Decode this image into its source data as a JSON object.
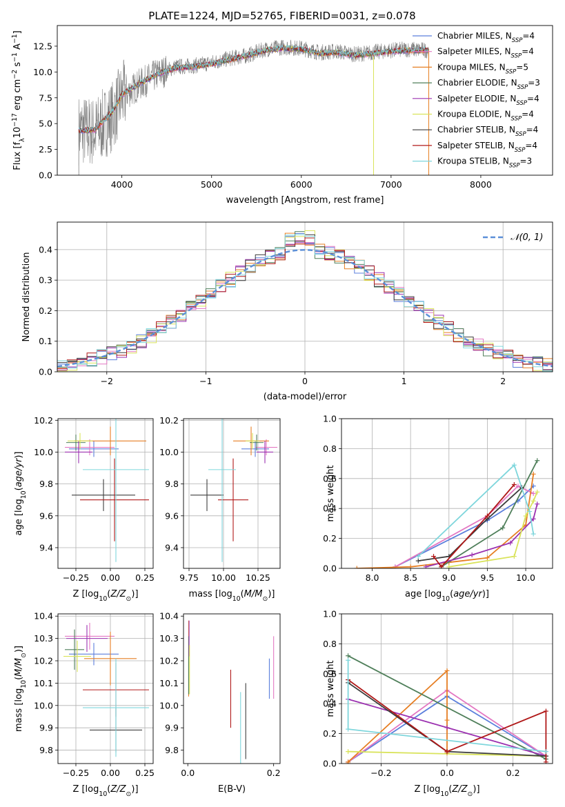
{
  "figure_title": "PLATE=1224, MJD=52765, FIBERID=0031, z=0.078",
  "chart_data": [
    {
      "id": "spectrum",
      "type": "line",
      "title": "PLATE=1224, MJD=52765, FIBERID=0031, z=0.078",
      "xlabel": "wavelength [Angstrom, rest frame]",
      "ylabel": "Flux [f_λ 10^-17 erg cm^-2 s^-1 A^-1]",
      "xlim": [
        3280,
        8800
      ],
      "ylim": [
        0,
        14.5
      ],
      "xticks": [
        4000,
        5000,
        6000,
        7000,
        8000
      ],
      "yticks": [
        0.0,
        2.5,
        5.0,
        7.5,
        10.0,
        12.5
      ],
      "grid": false,
      "legend_position": "right",
      "data_series": {
        "name": "data",
        "color": "#808080",
        "x": [
          3520,
          3700,
          3900,
          4000,
          4200,
          4400,
          4600,
          4800,
          5000,
          5200,
          5400,
          5600,
          5800,
          6000,
          6200,
          6400,
          6600,
          6800,
          7000,
          7200,
          7420
        ],
        "y": [
          4.4,
          4.2,
          5.8,
          7.6,
          8.8,
          9.8,
          10.5,
          10.6,
          10.9,
          11.3,
          11.6,
          12.2,
          12.4,
          12.3,
          11.9,
          12.0,
          11.7,
          11.9,
          12.1,
          12.2,
          12.1
        ]
      },
      "model_curve": {
        "x": [
          3520,
          3700,
          3900,
          4000,
          4200,
          4400,
          4600,
          4800,
          5000,
          5200,
          5400,
          5600,
          5800,
          6000,
          6200,
          6400,
          6600,
          6800,
          7000,
          7200,
          7420
        ],
        "y": [
          4.3,
          4.4,
          6.2,
          7.8,
          8.9,
          9.8,
          10.4,
          10.5,
          10.8,
          11.2,
          11.6,
          12.1,
          12.3,
          12.2,
          11.8,
          11.9,
          11.6,
          11.8,
          12.0,
          12.1,
          12.1
        ]
      },
      "series": [
        {
          "name": "Chabrier MILES, N_SSP=4",
          "label_main": "Chabrier MILES, N",
          "label_sub": "SSP",
          "label_tail": "=4",
          "color": "#5b7fdc"
        },
        {
          "name": "Salpeter MILES, N_SSP=4",
          "label_main": "Salpeter MILES, N",
          "label_sub": "SSP",
          "label_tail": "=4",
          "color": "#e377c2"
        },
        {
          "name": "Kroupa MILES, N_SSP=5",
          "label_main": "Kroupa MILES, N",
          "label_sub": "SSP",
          "label_tail": "=5",
          "color": "#e67e22"
        },
        {
          "name": "Chabrier ELODIE, N_SSP=3",
          "label_main": "Chabrier ELODIE, N",
          "label_sub": "SSP",
          "label_tail": "=3",
          "color": "#4f7f5a"
        },
        {
          "name": "Salpeter ELODIE, N_SSP=4",
          "label_main": "Salpeter ELODIE, N",
          "label_sub": "SSP",
          "label_tail": "=4",
          "color": "#9b30b0"
        },
        {
          "name": "Kroupa ELODIE, N_SSP=4",
          "label_main": "Kroupa ELODIE, N",
          "label_sub": "SSP",
          "label_tail": "=4",
          "color": "#d9e35a"
        },
        {
          "name": "Chabrier STELIB, N_SSP=4",
          "label_main": "Chabrier STELIB, N",
          "label_sub": "SSP",
          "label_tail": "=4",
          "color": "#3c3c3c"
        },
        {
          "name": "Salpeter STELIB, N_SSP=4",
          "label_main": "Salpeter STELIB, N",
          "label_sub": "SSP",
          "label_tail": "=4",
          "color": "#b01818"
        },
        {
          "name": "Kroupa STELIB, N_SSP=3",
          "label_main": "Kroupa STELIB, N",
          "label_sub": "SSP",
          "label_tail": "=3",
          "color": "#7ed6dc"
        }
      ]
    },
    {
      "id": "residuals",
      "type": "histogram",
      "xlabel": "(data-model)/error",
      "ylabel": "Normed distribution",
      "xlim": [
        -2.5,
        2.5
      ],
      "ylim": [
        0,
        0.49
      ],
      "xticks": [
        -2,
        -1,
        0,
        1,
        2
      ],
      "yticks": [
        0.0,
        0.1,
        0.2,
        0.3,
        0.4
      ],
      "grid": true,
      "legend_position": "top-right",
      "legend": "𝒩(0, 1)",
      "gaussian": {
        "mean": 0,
        "sigma": 1,
        "color": "#5b8fd8"
      },
      "bin_width": 0.1
    },
    {
      "id": "age_vs_Z",
      "type": "errorbar",
      "xlabel": "Z [log10(Z/Z☉)]",
      "ylabel": "age [log10(age/yr)]",
      "xlim": [
        -0.38,
        0.31
      ],
      "ylim": [
        9.27,
        10.21
      ],
      "xticks": [
        -0.25,
        0.0,
        0.25
      ],
      "yticks": [
        9.4,
        9.6,
        9.8,
        10.0,
        10.2
      ],
      "grid": true,
      "points": [
        {
          "x": -0.12,
          "xerr": 0.18,
          "y": 10.02,
          "yerr": 0.05
        },
        {
          "x": -0.15,
          "xerr": 0.18,
          "y": 10.03,
          "yerr": 0.05
        },
        {
          "x": 0.0,
          "xerr": 0.26,
          "y": 10.07,
          "yerr": 0.09
        },
        {
          "x": -0.25,
          "xerr": 0.07,
          "y": 10.06,
          "yerr": 0.05
        },
        {
          "x": -0.23,
          "xerr": 0.1,
          "y": 10.0,
          "yerr": 0.07
        },
        {
          "x": -0.22,
          "xerr": 0.09,
          "y": 10.07,
          "yerr": 0.05
        },
        {
          "x": -0.05,
          "xerr": 0.23,
          "y": 9.73,
          "yerr": 0.1
        },
        {
          "x": 0.03,
          "xerr": 0.25,
          "y": 9.7,
          "yerr": 0.26
        },
        {
          "x": 0.04,
          "xerr": 0.24,
          "y": 9.89,
          "yerr": 0.58
        }
      ]
    },
    {
      "id": "age_vs_mass",
      "type": "errorbar",
      "xlabel": "mass [log10(M/M☉)]",
      "ylabel": "",
      "xlim": [
        9.71,
        10.41
      ],
      "ylim": [
        9.27,
        10.21
      ],
      "xticks": [
        9.75,
        10.0,
        10.25
      ],
      "yticks": [
        9.4,
        9.6,
        9.8,
        10.0,
        10.2
      ],
      "grid": true,
      "points": [
        {
          "x": 10.23,
          "xerr": 0.1,
          "y": 10.02,
          "yerr": 0.05
        },
        {
          "x": 10.31,
          "xerr": 0.08,
          "y": 10.03,
          "yerr": 0.05
        },
        {
          "x": 10.2,
          "xerr": 0.13,
          "y": 10.07,
          "yerr": 0.09
        },
        {
          "x": 10.24,
          "xerr": 0.05,
          "y": 10.06,
          "yerr": 0.05
        },
        {
          "x": 10.3,
          "xerr": 0.06,
          "y": 10.0,
          "yerr": 0.07
        },
        {
          "x": 10.21,
          "xerr": 0.05,
          "y": 10.07,
          "yerr": 0.05
        },
        {
          "x": 9.88,
          "xerr": 0.12,
          "y": 9.73,
          "yerr": 0.1
        },
        {
          "x": 10.07,
          "xerr": 0.11,
          "y": 9.7,
          "yerr": 0.26
        },
        {
          "x": 9.99,
          "xerr": 0.1,
          "y": 9.89,
          "yerr": 0.58
        }
      ]
    },
    {
      "id": "massweight_vs_age",
      "type": "line",
      "xlabel": "age [log10(age/yr)]",
      "ylabel": "mass weight",
      "xlim": [
        7.6,
        10.35
      ],
      "ylim": [
        0,
        1.0
      ],
      "xticks": [
        8.0,
        8.5,
        9.0,
        9.5,
        10.0
      ],
      "yticks": [
        0.0,
        0.2,
        0.4,
        0.6,
        0.8,
        1.0
      ],
      "grid": true,
      "series": [
        {
          "x": [
            8.3,
            9.5,
            9.9,
            10.1
          ],
          "y": [
            0.01,
            0.32,
            0.45,
            0.55
          ]
        },
        {
          "x": [
            8.3,
            9.5,
            9.9,
            10.1
          ],
          "y": [
            0.01,
            0.35,
            0.55,
            0.5
          ]
        },
        {
          "x": [
            7.8,
            8.5,
            9.0,
            9.5,
            10.0,
            10.1
          ],
          "y": [
            0.0,
            0.01,
            0.04,
            0.07,
            0.29,
            0.63
          ]
        },
        {
          "x": [
            8.9,
            9.7,
            10.15
          ],
          "y": [
            0.01,
            0.27,
            0.72
          ]
        },
        {
          "x": [
            8.7,
            9.3,
            9.8,
            10.1,
            10.15
          ],
          "y": [
            0.01,
            0.09,
            0.17,
            0.33,
            0.43
          ]
        },
        {
          "x": [
            9.0,
            9.85,
            10.0,
            10.1,
            10.15
          ],
          "y": [
            0.01,
            0.08,
            0.35,
            0.45,
            0.51
          ]
        },
        {
          "x": [
            8.6,
            9.0,
            9.5,
            9.95
          ],
          "y": [
            0.05,
            0.08,
            0.33,
            0.54
          ]
        },
        {
          "x": [
            8.8,
            8.9,
            9.5,
            9.85
          ],
          "y": [
            0.08,
            0.01,
            0.35,
            0.56
          ]
        },
        {
          "x": [
            8.6,
            9.85,
            10.05,
            10.1
          ],
          "y": [
            0.08,
            0.69,
            0.38,
            0.23
          ]
        }
      ]
    },
    {
      "id": "mass_vs_Z",
      "type": "errorbar",
      "xlabel": "Z [log10(Z/Z☉)]",
      "ylabel": "mass [log10(M/M☉)]",
      "xlim": [
        -0.38,
        0.31
      ],
      "ylim": [
        9.74,
        10.41
      ],
      "xticks": [
        -0.25,
        0.0,
        0.25
      ],
      "yticks": [
        9.8,
        9.9,
        10.0,
        10.1,
        10.2,
        10.3,
        10.4
      ],
      "grid": true,
      "points": [
        {
          "x": -0.12,
          "xerr": 0.18,
          "y": 10.23,
          "yerr": 0.05
        },
        {
          "x": -0.15,
          "xerr": 0.18,
          "y": 10.31,
          "yerr": 0.06
        },
        {
          "x": 0.0,
          "xerr": 0.19,
          "y": 10.21,
          "yerr": 0.12
        },
        {
          "x": -0.26,
          "xerr": 0.07,
          "y": 10.25,
          "yerr": 0.09
        },
        {
          "x": -0.17,
          "xerr": 0.15,
          "y": 10.3,
          "yerr": 0.06
        },
        {
          "x": -0.24,
          "xerr": 0.1,
          "y": 10.22,
          "yerr": 0.07
        },
        {
          "x": 0.04,
          "xerr": 0.19,
          "y": 9.89,
          "yerr": 0.1
        },
        {
          "x": 0.04,
          "xerr": 0.24,
          "y": 10.07,
          "yerr": 0.12
        },
        {
          "x": 0.04,
          "xerr": 0.24,
          "y": 9.99,
          "yerr": 0.22
        }
      ]
    },
    {
      "id": "mass_vs_ebv",
      "type": "errorbar",
      "xlabel": "E(B-V)",
      "ylabel": "",
      "xlim": [
        -0.01,
        0.215
      ],
      "ylim": [
        9.74,
        10.41
      ],
      "xticks": [
        0.0,
        0.2
      ],
      "yticks": [
        9.8,
        9.9,
        10.0,
        10.1,
        10.2,
        10.3,
        10.4
      ],
      "grid": false,
      "points": [
        {
          "x": 0.19,
          "y": 10.12,
          "yerr": 0.09
        },
        {
          "x": 0.2,
          "y": 10.17,
          "yerr": 0.14
        },
        {
          "x": 0.002,
          "y": 10.21,
          "yerr": 0.17
        },
        {
          "x": 0.002,
          "y": 10.18,
          "yerr": 0.13
        },
        {
          "x": 0.003,
          "y": 10.3,
          "yerr": 0.08
        },
        {
          "x": 0.004,
          "y": 10.16,
          "yerr": 0.11
        },
        {
          "x": 0.135,
          "y": 9.93,
          "yerr": 0.17
        },
        {
          "x": 0.1,
          "y": 10.03,
          "yerr": 0.13
        },
        {
          "x": 0.123,
          "y": 9.87,
          "yerr": 0.19
        }
      ]
    },
    {
      "id": "massweight_vs_Z",
      "type": "line",
      "xlabel": "Z [log10(Z/Z☉)]",
      "ylabel": "mass weight",
      "xlim": [
        -0.32,
        0.32
      ],
      "ylim": [
        0,
        1.0
      ],
      "xticks": [
        -0.2,
        0.0,
        0.2
      ],
      "yticks": [
        0.0,
        0.2,
        0.4,
        0.6,
        0.8,
        1.0
      ],
      "grid": true,
      "series": [
        {
          "x": [
            -0.3,
            0.0,
            0.3
          ],
          "y": [
            0.01,
            0.45,
            0.05
          ]
        },
        {
          "x": [
            -0.3,
            0.0,
            0.3
          ],
          "y": [
            0.01,
            0.49,
            0.05
          ]
        },
        {
          "x": [
            -0.3,
            -0.3,
            0.0,
            0.0,
            0.0
          ],
          "y": [
            0.0,
            0.01,
            0.62,
            0.29,
            0.07
          ]
        },
        {
          "x": [
            -0.3,
            0.3
          ],
          "y": [
            0.72,
            0.03
          ]
        },
        {
          "x": [
            -0.3,
            0.0,
            0.3
          ],
          "y": [
            0.43,
            0.24,
            0.05
          ]
        },
        {
          "x": [
            -0.3,
            0.3
          ],
          "y": [
            0.08,
            0.05
          ]
        },
        {
          "x": [
            -0.3,
            0.0,
            0.3
          ],
          "y": [
            0.54,
            0.08,
            0.05
          ]
        },
        {
          "x": [
            -0.3,
            0.0,
            0.3,
            0.3
          ],
          "y": [
            0.56,
            0.08,
            0.35,
            0.01
          ]
        },
        {
          "x": [
            -0.3,
            -0.3,
            0.3
          ],
          "y": [
            0.69,
            0.23,
            0.08
          ]
        }
      ]
    }
  ]
}
